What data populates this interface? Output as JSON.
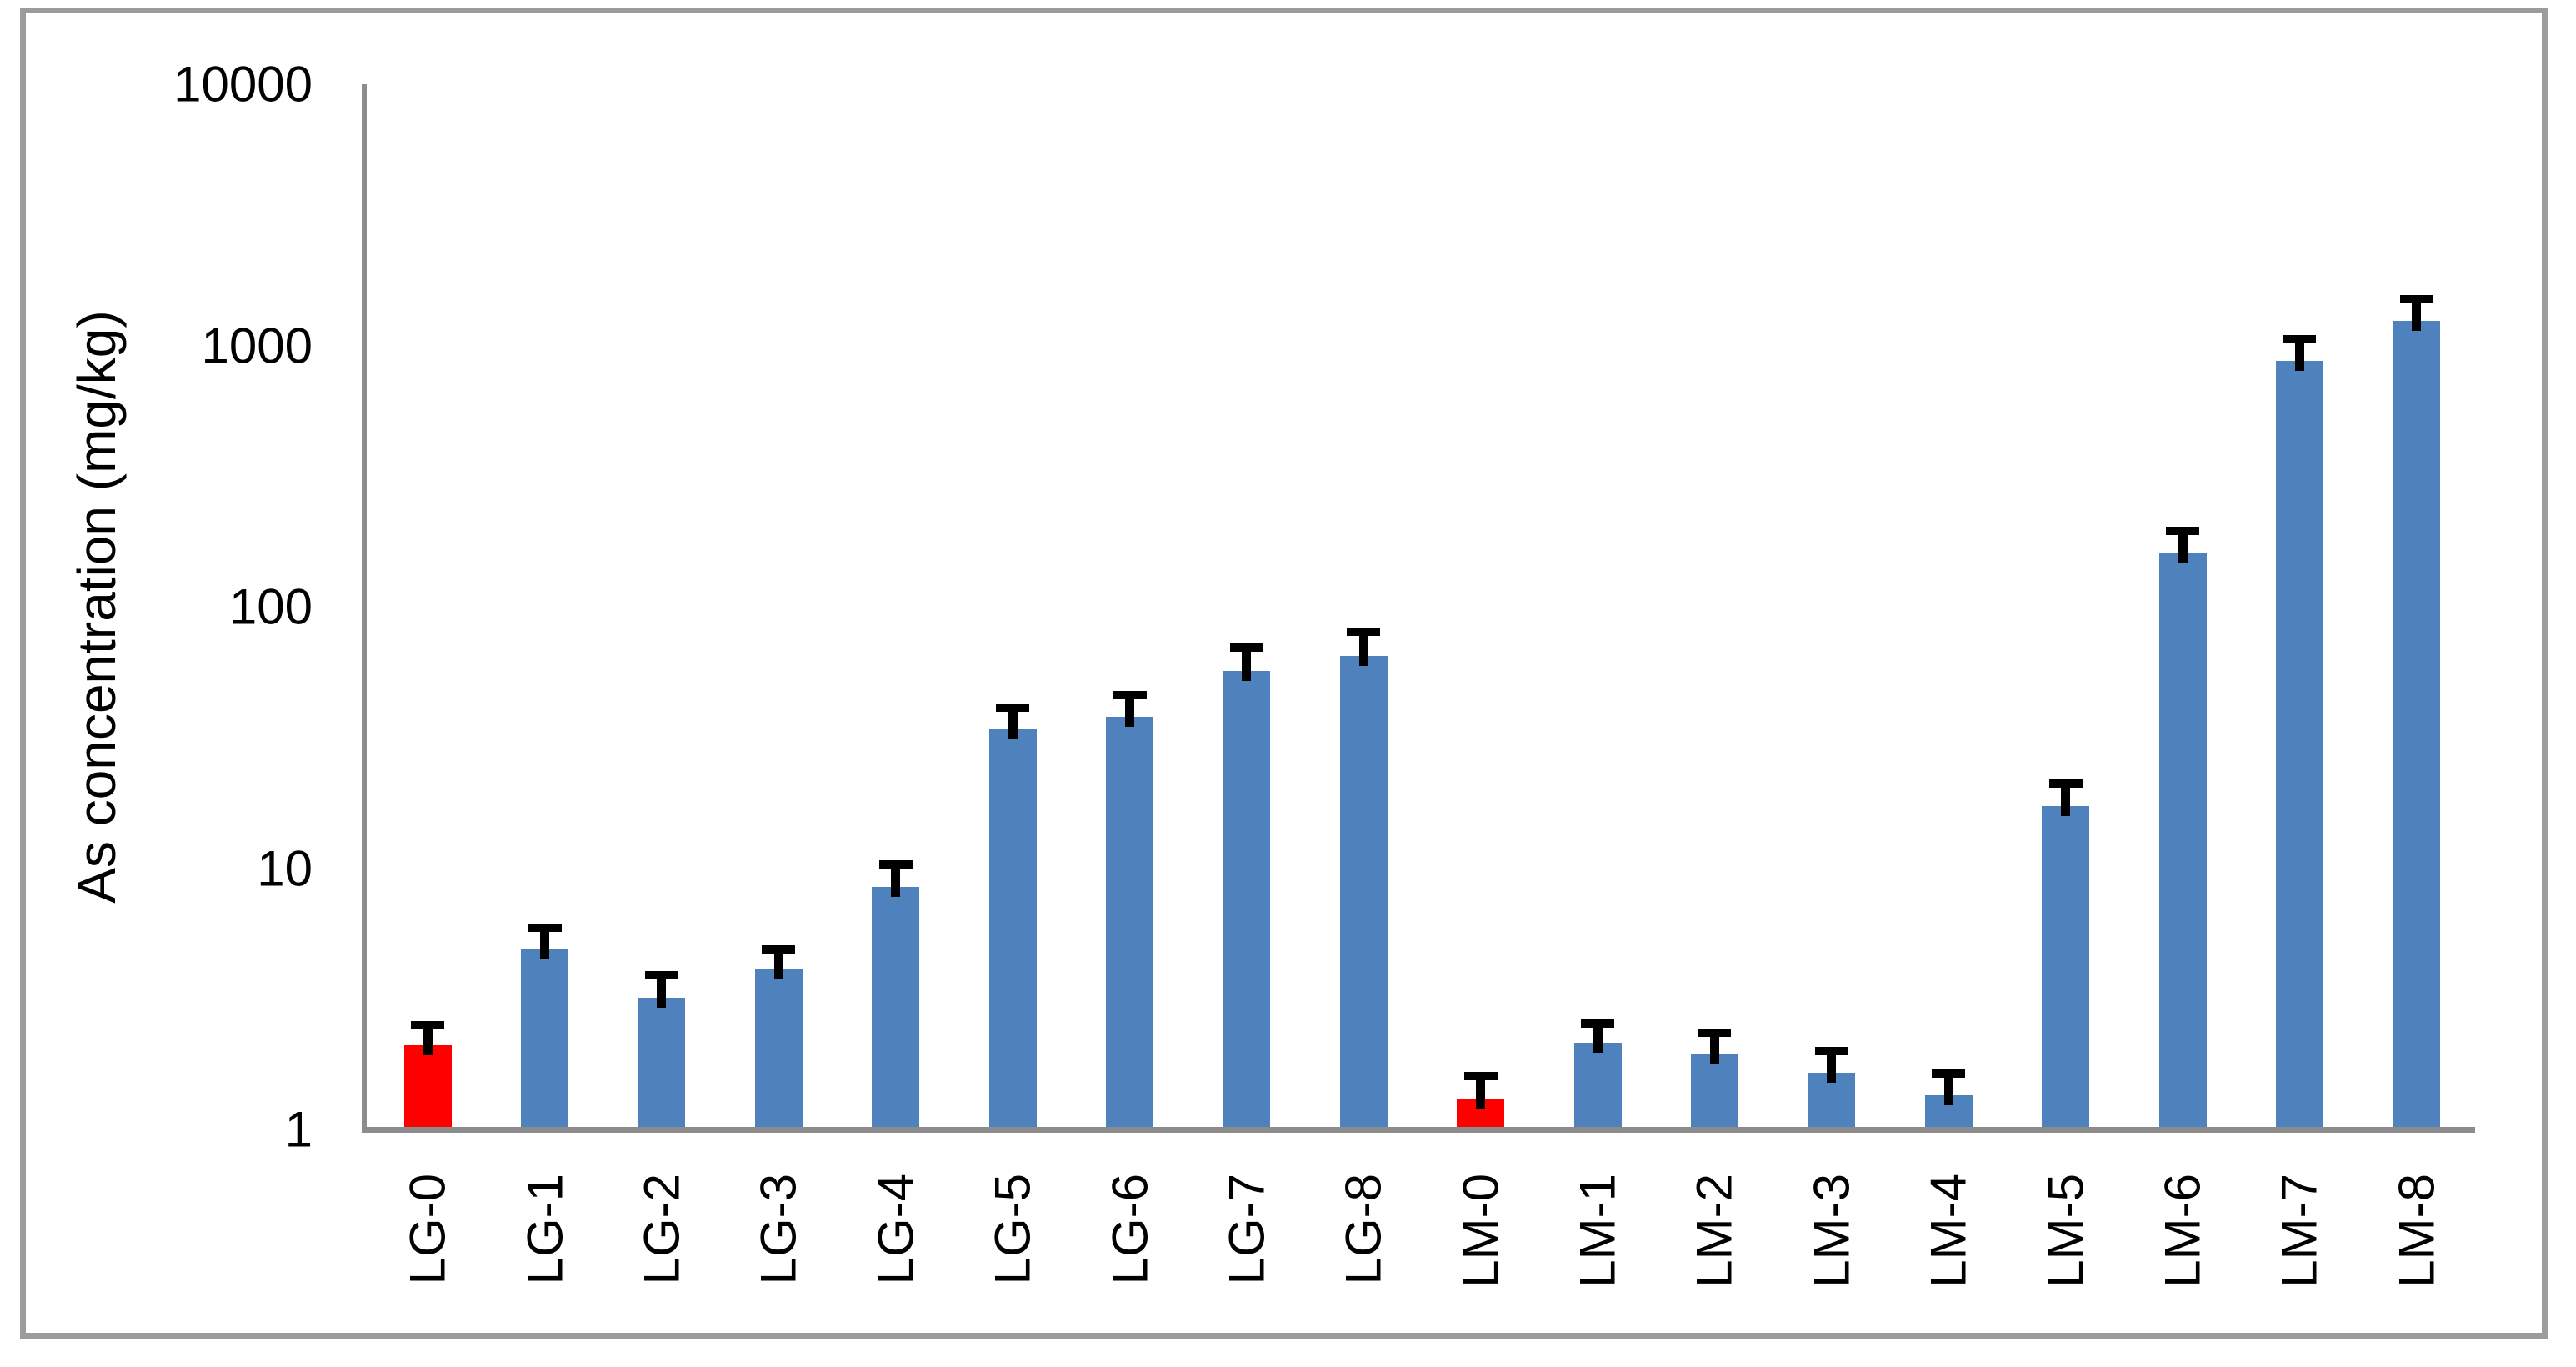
{
  "chart_data": {
    "type": "bar",
    "title": "",
    "xlabel": "",
    "ylabel": "As concentration (mg/kg)",
    "y_scale": "log",
    "ylim": [
      1,
      10000
    ],
    "y_ticks": [
      1,
      10,
      100,
      1000,
      10000
    ],
    "grid": false,
    "legend": false,
    "categories": [
      "LG-0",
      "LG-1",
      "LG-2",
      "LG-3",
      "LG-4",
      "LG-5",
      "LG-6",
      "LG-7",
      "LG-8",
      "LM-0",
      "LM-1",
      "LM-2",
      "LM-3",
      "LM-4",
      "LM-5",
      "LM-6",
      "LM-7",
      "LM-8"
    ],
    "series": [
      {
        "name": "As concentration (mg/kg)",
        "values": [
          2.1,
          4.9,
          3.2,
          4.1,
          8.5,
          34,
          38,
          57,
          65,
          1.3,
          2.15,
          1.95,
          1.65,
          1.35,
          17.3,
          160,
          870,
          1240
        ],
        "error_upper": [
          2.5,
          5.9,
          3.9,
          4.9,
          10.3,
          41,
          46,
          70,
          80,
          1.6,
          2.55,
          2.35,
          2.0,
          1.63,
          21,
          195,
          1060,
          1500
        ]
      }
    ],
    "highlighted_indices": [
      0,
      9
    ],
    "colors": {
      "bar_default": "#4F81BD",
      "bar_highlight": "#FF0000",
      "error_bar": "#000000",
      "axis_line": "#8C8C8C",
      "figure_border": "#9C9C9C",
      "background": "#FFFFFF",
      "text": "#000000"
    }
  }
}
